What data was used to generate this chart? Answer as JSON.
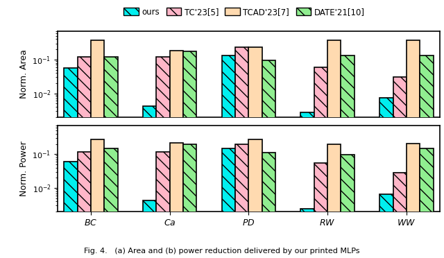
{
  "categories": [
    "BC",
    "Ca",
    "PD",
    "RW",
    "WW"
  ],
  "legend_labels": [
    "ours",
    "TC'23[5]",
    "TCAD'23[7]",
    "DATE'21[10]"
  ],
  "colors": [
    "#00EFEF",
    "#FFB6C8",
    "#FFDAB0",
    "#90EE90"
  ],
  "hatch_patterns": [
    "\\\\",
    "\\\\",
    "",
    "\\\\"
  ],
  "area_data": {
    "ours": [
      0.055,
      0.0042,
      0.13,
      0.0028,
      0.0075
    ],
    "TC23": [
      0.12,
      0.12,
      0.23,
      0.058,
      0.03
    ],
    "TCAD23": [
      0.38,
      0.185,
      0.23,
      0.38,
      0.38
    ],
    "DATE21": [
      0.12,
      0.175,
      0.095,
      0.13,
      0.13
    ]
  },
  "power_data": {
    "ours": [
      0.06,
      0.0042,
      0.15,
      0.0024,
      0.0065
    ],
    "TC23": [
      0.115,
      0.115,
      0.2,
      0.055,
      0.028
    ],
    "TCAD23": [
      0.27,
      0.22,
      0.27,
      0.2,
      0.21
    ],
    "DATE21": [
      0.145,
      0.2,
      0.11,
      0.095,
      0.145
    ]
  },
  "ylim_area": [
    0.002,
    0.7
  ],
  "ylim_power": [
    0.002,
    0.7
  ],
  "yticks": [
    0.01,
    0.1
  ],
  "ylabel_area": "Norm. Area",
  "ylabel_power": "Norm. Power",
  "figcaption": "Fig. 4.   (a) Area and (b) power reduction delivered by our printed MLPs",
  "bar_width": 0.17,
  "edgecolor": "black",
  "linewidth": 1.2
}
